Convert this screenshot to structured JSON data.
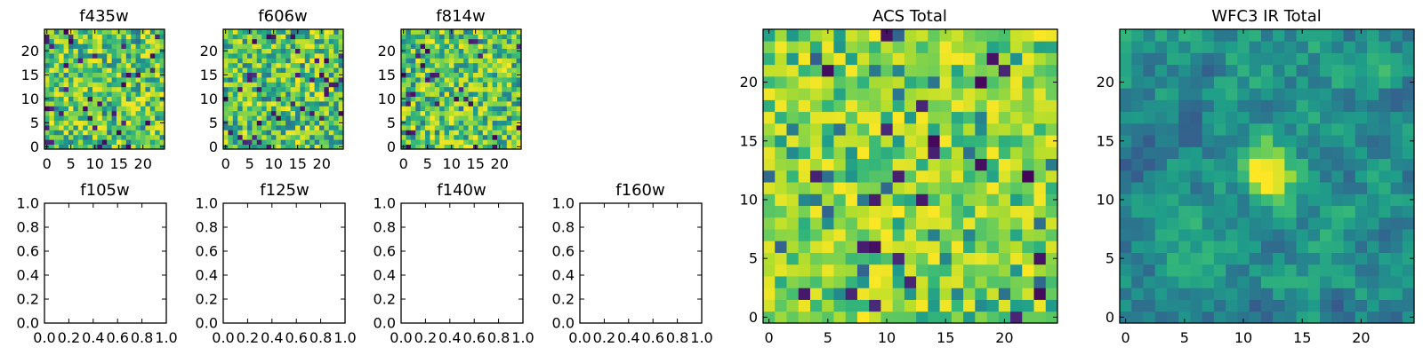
{
  "colormap": "viridis",
  "chart_data": [
    {
      "type": "heatmap",
      "title": "f435w",
      "image_size": [
        25,
        25
      ],
      "xlim": [
        -0.5,
        24.5
      ],
      "ylim": [
        -0.5,
        24.5
      ],
      "xticks": [
        0,
        5,
        10,
        15,
        20
      ],
      "yticks": [
        0,
        5,
        10,
        15,
        20
      ],
      "xtick_labels": [
        "0",
        "5",
        "10",
        "15",
        "20"
      ],
      "ytick_labels": [
        "0",
        "5",
        "10",
        "15",
        "20"
      ],
      "pattern": "noise",
      "seed": 11,
      "value_range": [
        0,
        1
      ]
    },
    {
      "type": "heatmap",
      "title": "f606w",
      "image_size": [
        25,
        25
      ],
      "xlim": [
        -0.5,
        24.5
      ],
      "ylim": [
        -0.5,
        24.5
      ],
      "xticks": [
        0,
        5,
        10,
        15,
        20
      ],
      "yticks": [
        0,
        5,
        10,
        15,
        20
      ],
      "xtick_labels": [
        "0",
        "5",
        "10",
        "15",
        "20"
      ],
      "ytick_labels": [
        "0",
        "5",
        "10",
        "15",
        "20"
      ],
      "pattern": "noise",
      "seed": 23,
      "value_range": [
        0,
        1
      ]
    },
    {
      "type": "heatmap",
      "title": "f814w",
      "image_size": [
        25,
        25
      ],
      "xlim": [
        -0.5,
        24.5
      ],
      "ylim": [
        -0.5,
        24.5
      ],
      "xticks": [
        0,
        5,
        10,
        15,
        20
      ],
      "yticks": [
        0,
        5,
        10,
        15,
        20
      ],
      "xtick_labels": [
        "0",
        "5",
        "10",
        "15",
        "20"
      ],
      "ytick_labels": [
        "0",
        "5",
        "10",
        "15",
        "20"
      ],
      "pattern": "noise",
      "seed": 37,
      "value_range": [
        0,
        1
      ]
    },
    {
      "type": "empty",
      "title": "f105w",
      "xlim": [
        0,
        1
      ],
      "ylim": [
        0,
        1
      ],
      "xtick_labels": [
        "0.0",
        "0.2",
        "0.4",
        "0.6",
        "0.8",
        "1.0"
      ],
      "ytick_labels": [
        "0.0",
        "0.2",
        "0.4",
        "0.6",
        "0.8",
        "1.0"
      ]
    },
    {
      "type": "empty",
      "title": "f125w",
      "xlim": [
        0,
        1
      ],
      "ylim": [
        0,
        1
      ],
      "xtick_labels": [
        "0.0",
        "0.2",
        "0.4",
        "0.6",
        "0.8",
        "1.0"
      ],
      "ytick_labels": [
        "0.0",
        "0.2",
        "0.4",
        "0.6",
        "0.8",
        "1.0"
      ]
    },
    {
      "type": "empty",
      "title": "f140w",
      "xlim": [
        0,
        1
      ],
      "ylim": [
        0,
        1
      ],
      "xtick_labels": [
        "0.0",
        "0.2",
        "0.4",
        "0.6",
        "0.8",
        "1.0"
      ],
      "ytick_labels": [
        "0.0",
        "0.2",
        "0.4",
        "0.6",
        "0.8",
        "1.0"
      ]
    },
    {
      "type": "empty",
      "title": "f160w",
      "xlim": [
        0,
        1
      ],
      "ylim": [
        0,
        1
      ],
      "xtick_labels": [
        "0.0",
        "0.2",
        "0.4",
        "0.6",
        "0.8",
        "1.0"
      ],
      "ytick_labels": [
        "0.0",
        "0.2",
        "0.4",
        "0.6",
        "0.8",
        "1.0"
      ]
    },
    {
      "type": "heatmap",
      "title": "ACS Total",
      "image_size": [
        25,
        25
      ],
      "xlim": [
        -0.5,
        24.5
      ],
      "ylim": [
        -0.5,
        24.5
      ],
      "xticks": [
        0,
        5,
        10,
        15,
        20
      ],
      "yticks": [
        0,
        5,
        10,
        15,
        20
      ],
      "xtick_labels": [
        "0",
        "5",
        "10",
        "15",
        "20"
      ],
      "ytick_labels": [
        "0",
        "5",
        "10",
        "15",
        "20"
      ],
      "pattern": "noise-bright",
      "seed": 51,
      "value_range": [
        0,
        1
      ]
    },
    {
      "type": "heatmap",
      "title": "WFC3 IR Total",
      "image_size": [
        25,
        25
      ],
      "xlim": [
        -0.5,
        24.5
      ],
      "ylim": [
        -0.5,
        24.5
      ],
      "xticks": [
        0,
        5,
        10,
        15,
        20
      ],
      "yticks": [
        0,
        5,
        10,
        15,
        20
      ],
      "xtick_labels": [
        "0",
        "5",
        "10",
        "15",
        "20"
      ],
      "ytick_labels": [
        "0",
        "5",
        "10",
        "15",
        "20"
      ],
      "pattern": "smooth-with-source",
      "source_center": [
        12,
        12.5
      ],
      "seed": 67,
      "value_range": [
        0,
        1
      ]
    }
  ]
}
